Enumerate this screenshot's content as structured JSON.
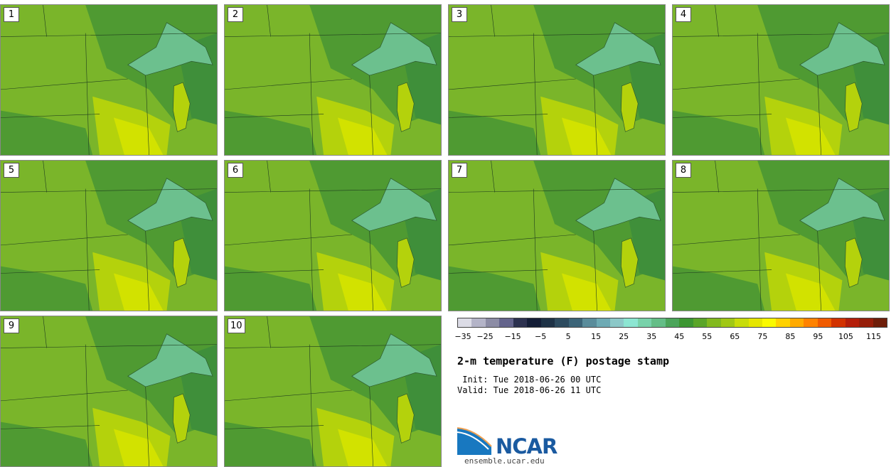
{
  "stamps": [
    "1",
    "2",
    "3",
    "4",
    "5",
    "6",
    "7",
    "8",
    "9",
    "10"
  ],
  "colorbar": {
    "colors": [
      "#dcdce6",
      "#b4b4c8",
      "#8c8ca5",
      "#64648c",
      "#2d3250",
      "#141e37",
      "#1e3246",
      "#2d4b5f",
      "#3c6478",
      "#5a8c9b",
      "#6eaab4",
      "#8cc8c8",
      "#8ce6d2",
      "#78d2aa",
      "#64be87",
      "#4ba55a",
      "#3c9632",
      "#5aa528",
      "#82b91e",
      "#a0c814",
      "#c8dc0a",
      "#e6e600",
      "#fafa00",
      "#ffd200",
      "#ffaa00",
      "#ff8200",
      "#f05a00",
      "#d23200",
      "#b41e0a",
      "#961e0a",
      "#6e1e0a"
    ],
    "ticks": [
      "−35",
      "−25",
      "−15",
      "−5",
      "5",
      "15",
      "25",
      "35",
      "45",
      "55",
      "65",
      "75",
      "85",
      "95",
      "105",
      "115"
    ]
  },
  "title": "2-m temperature (F) postage stamp",
  "init": " Init: Tue 2018-06-26 00 UTC",
  "valid": "Valid: Tue 2018-06-26 11 UTC",
  "logo": {
    "text": "NCAR",
    "website": "ensemble.ucar.edu"
  },
  "map_colors": {
    "base": "#7ab52a",
    "cool": "#4f9a32",
    "cooler": "#3f8f3a",
    "lake": "#6cc08e",
    "warm": "#b4d20c",
    "warmer": "#d2e200"
  }
}
